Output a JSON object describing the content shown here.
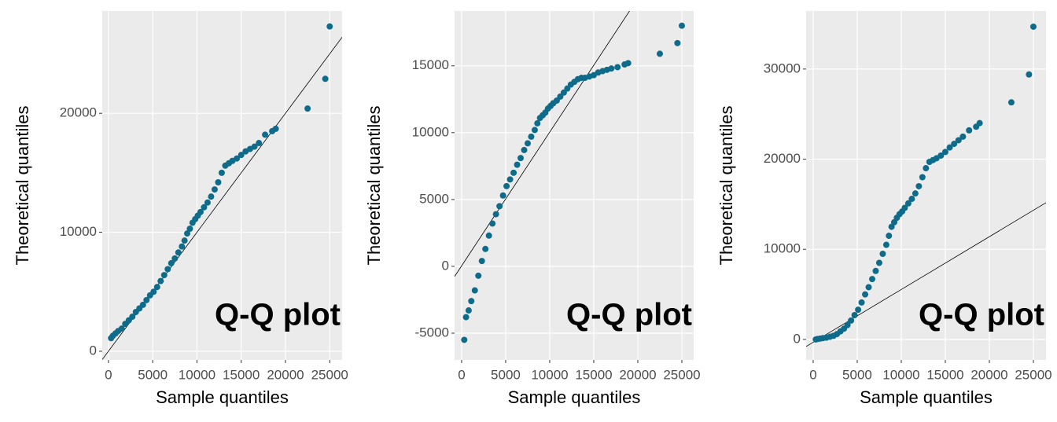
{
  "chart_data": [
    {
      "type": "scatter",
      "x_label": "Sample quantiles",
      "y_label": "Theoretical quantiles",
      "annotation": "Q-Q plot",
      "color": "#0f6b8a",
      "line_color": "#000000",
      "grid": true,
      "xlim": [
        -700,
        26400
      ],
      "ylim": [
        -730,
        28600
      ],
      "xticks": [
        0,
        5000,
        10000,
        15000,
        20000,
        25000
      ],
      "yticks": [
        0,
        10000,
        20000
      ],
      "ref_line": {
        "intercept": 0,
        "slope": 1.0
      },
      "x": [
        300,
        500,
        800,
        1100,
        1500,
        1900,
        2300,
        2700,
        3100,
        3500,
        3900,
        4300,
        4700,
        5100,
        5500,
        5900,
        6300,
        6700,
        7100,
        7500,
        7900,
        8300,
        8600,
        8900,
        9200,
        9500,
        9800,
        10100,
        10400,
        10800,
        11200,
        11600,
        12000,
        12400,
        12800,
        13200,
        13600,
        14000,
        14500,
        15000,
        15500,
        16000,
        16500,
        17000,
        17700,
        18500,
        18900,
        22500,
        24500,
        25000
      ],
      "y": [
        1100,
        1300,
        1500,
        1700,
        1900,
        2300,
        2600,
        2900,
        3300,
        3600,
        3900,
        4300,
        4700,
        5000,
        5400,
        5900,
        6400,
        6900,
        7400,
        7800,
        8300,
        8800,
        9300,
        9900,
        10300,
        10800,
        11100,
        11400,
        11700,
        12100,
        12500,
        13000,
        13600,
        14200,
        15000,
        15600,
        15800,
        16000,
        16200,
        16500,
        16800,
        17000,
        17200,
        17500,
        18200,
        18500,
        18700,
        20400,
        22900,
        27300
      ]
    },
    {
      "type": "scatter",
      "x_label": "Sample quantiles",
      "y_label": "Theoretical quantiles",
      "annotation": "Q-Q plot",
      "color": "#0f6b8a",
      "line_color": "#000000",
      "grid": true,
      "xlim": [
        -800,
        26340
      ],
      "ylim": [
        -7000,
        19100
      ],
      "xticks": [
        0,
        5000,
        10000,
        15000,
        20000,
        25000
      ],
      "yticks": [
        -5000,
        0,
        5000,
        10000,
        15000
      ],
      "ref_line": {
        "intercept": 40,
        "slope": 1.0
      },
      "x": [
        300,
        500,
        800,
        1100,
        1500,
        1900,
        2300,
        2700,
        3100,
        3500,
        3900,
        4300,
        4700,
        5100,
        5500,
        5900,
        6300,
        6700,
        7100,
        7500,
        7900,
        8300,
        8600,
        8900,
        9200,
        9500,
        9800,
        10100,
        10400,
        10800,
        11200,
        11600,
        12000,
        12400,
        12800,
        13200,
        13600,
        14000,
        14500,
        15000,
        15500,
        16000,
        16500,
        17000,
        17700,
        18500,
        18900,
        22500,
        24500,
        25000
      ],
      "y": [
        -5500,
        -3800,
        -3300,
        -2600,
        -1800,
        -700,
        400,
        1300,
        2300,
        3200,
        3900,
        4500,
        5300,
        6000,
        6500,
        7000,
        7600,
        8100,
        8700,
        9200,
        9700,
        10200,
        10700,
        11100,
        11300,
        11500,
        11800,
        12000,
        12200,
        12400,
        12700,
        13000,
        13300,
        13600,
        13800,
        14000,
        14100,
        14100,
        14200,
        14300,
        14500,
        14600,
        14700,
        14800,
        14900,
        15100,
        15200,
        15900,
        16700,
        18000
      ]
    },
    {
      "type": "scatter",
      "x_label": "Sample quantiles",
      "y_label": "Theoretical quantiles",
      "annotation": "Q-Q plot",
      "color": "#0f6b8a",
      "line_color": "#000000",
      "grid": true,
      "xlim": [
        -800,
        26430
      ],
      "ylim": [
        -2270,
        36440
      ],
      "xticks": [
        0,
        5000,
        10000,
        15000,
        20000,
        25000
      ],
      "yticks": [
        0,
        10000,
        20000,
        30000
      ],
      "ref_line": {
        "intercept": -316,
        "slope": 0.586
      },
      "x": [
        300,
        500,
        800,
        1100,
        1500,
        1900,
        2300,
        2700,
        3100,
        3500,
        3900,
        4300,
        4700,
        5100,
        5500,
        5900,
        6300,
        6700,
        7100,
        7500,
        7900,
        8300,
        8600,
        8900,
        9200,
        9500,
        9800,
        10100,
        10400,
        10800,
        11200,
        11600,
        12000,
        12400,
        12800,
        13200,
        13600,
        14000,
        14500,
        15000,
        15500,
        16000,
        16500,
        17000,
        17700,
        18500,
        18900,
        22500,
        24500,
        25000
      ],
      "y": [
        0,
        50,
        100,
        150,
        200,
        300,
        400,
        600,
        900,
        1200,
        1600,
        2100,
        2700,
        3300,
        4100,
        5000,
        5800,
        6700,
        7600,
        8500,
        9500,
        10500,
        11500,
        12500,
        13000,
        13500,
        13900,
        14200,
        14600,
        15100,
        15600,
        16200,
        17000,
        18000,
        19000,
        19700,
        19900,
        20100,
        20400,
        20800,
        21300,
        21700,
        22100,
        22500,
        23200,
        23600,
        24000,
        26300,
        29400,
        34700
      ]
    }
  ]
}
